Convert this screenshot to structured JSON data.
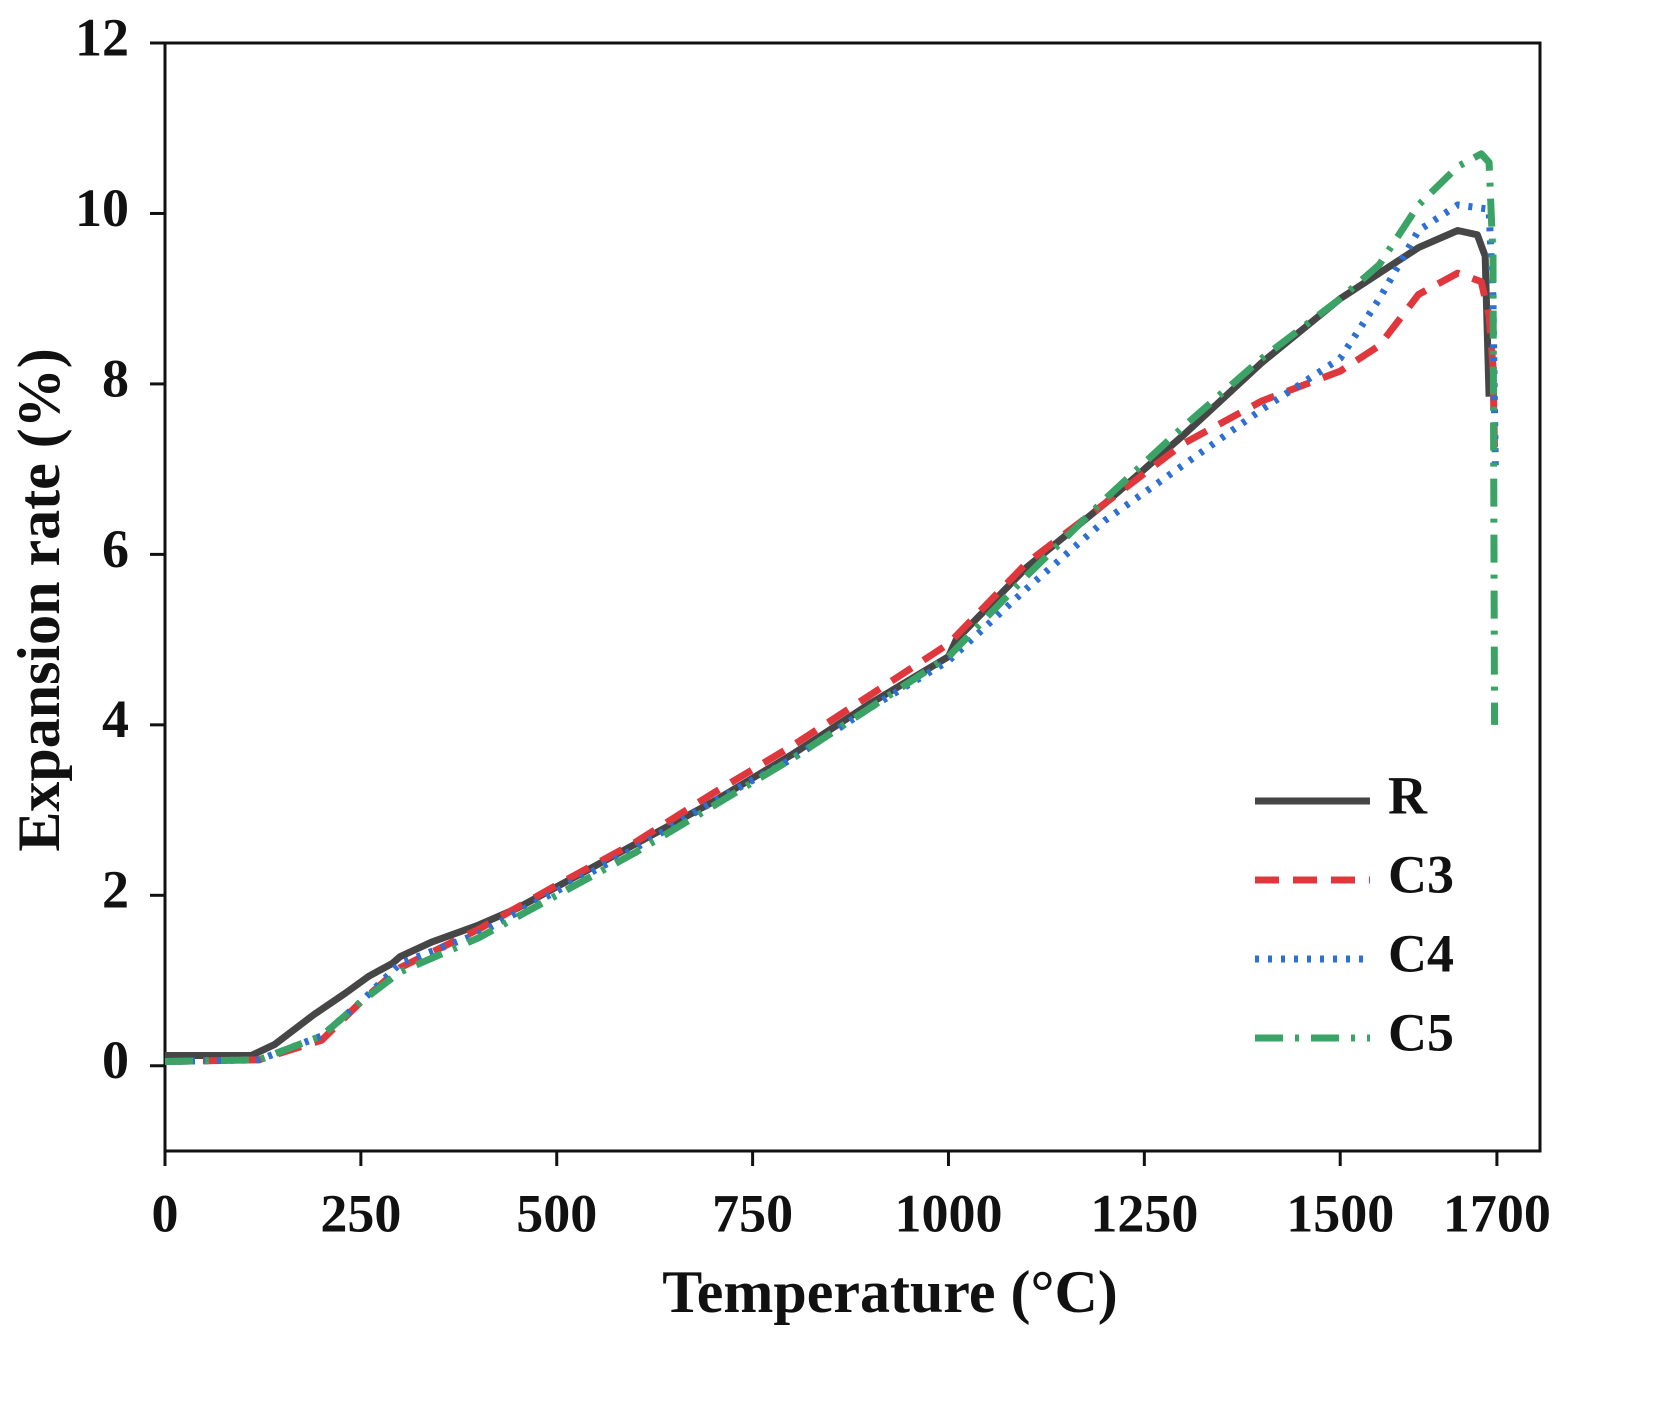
{
  "chart_data": {
    "type": "line",
    "xlabel": "Temperature (°C)",
    "ylabel": "Expansion rate (%)",
    "xlim": [
      0,
      1755
    ],
    "xticks": [
      0,
      250,
      500,
      750,
      1000,
      1250,
      1500,
      1700
    ],
    "ylim": [
      -1,
      12
    ],
    "yticks": [
      0,
      2,
      4,
      6,
      8,
      10,
      12
    ],
    "legend": "lower right",
    "series": [
      {
        "name": "R",
        "color": "#464646",
        "style": "solid",
        "x": [
          0,
          110,
          140,
          190,
          230,
          260,
          290,
          300,
          340,
          400,
          450,
          500,
          600,
          700,
          800,
          900,
          1000,
          1010,
          1100,
          1200,
          1300,
          1400,
          1500,
          1600,
          1650,
          1675,
          1685,
          1690
        ],
        "values": [
          0.12,
          0.12,
          0.25,
          0.6,
          0.85,
          1.05,
          1.2,
          1.28,
          1.45,
          1.65,
          1.85,
          2.1,
          2.6,
          3.1,
          3.65,
          4.25,
          4.8,
          5.0,
          5.85,
          6.6,
          7.4,
          8.25,
          9.0,
          9.6,
          9.8,
          9.75,
          9.5,
          7.85
        ]
      },
      {
        "name": "C3",
        "color": "#e0373d",
        "style": "dashed",
        "x": [
          0,
          120,
          200,
          250,
          300,
          400,
          500,
          600,
          700,
          800,
          900,
          1000,
          1100,
          1200,
          1300,
          1400,
          1500,
          1550,
          1600,
          1650,
          1680,
          1690,
          1695,
          1697
        ],
        "values": [
          0.05,
          0.07,
          0.3,
          0.75,
          1.15,
          1.6,
          2.12,
          2.62,
          3.2,
          3.75,
          4.35,
          4.95,
          5.9,
          6.6,
          7.3,
          7.8,
          8.15,
          8.45,
          9.05,
          9.3,
          9.2,
          8.8,
          8.2,
          7.2
        ]
      },
      {
        "name": "C4",
        "color": "#2e6fd3",
        "style": "dotted",
        "x": [
          0,
          120,
          200,
          250,
          300,
          400,
          500,
          600,
          700,
          800,
          900,
          1000,
          1100,
          1200,
          1300,
          1400,
          1500,
          1550,
          1600,
          1650,
          1690,
          1695,
          1698
        ],
        "values": [
          0.05,
          0.07,
          0.35,
          0.75,
          1.2,
          1.55,
          2.05,
          2.55,
          3.1,
          3.6,
          4.2,
          4.75,
          5.6,
          6.4,
          7.05,
          7.7,
          8.3,
          9.0,
          9.8,
          10.1,
          10.05,
          9.0,
          7.0
        ]
      },
      {
        "name": "C5",
        "color": "#3aa365",
        "style": "dashdot",
        "x": [
          0,
          120,
          200,
          250,
          300,
          400,
          500,
          600,
          700,
          800,
          900,
          1000,
          1100,
          1200,
          1300,
          1400,
          1500,
          1550,
          1600,
          1650,
          1680,
          1690,
          1695,
          1697
        ],
        "values": [
          0.05,
          0.07,
          0.35,
          0.75,
          1.1,
          1.5,
          2.0,
          2.5,
          3.05,
          3.6,
          4.2,
          4.8,
          5.75,
          6.65,
          7.5,
          8.3,
          9.0,
          9.4,
          10.1,
          10.55,
          10.7,
          10.6,
          9.5,
          4.0
        ]
      }
    ]
  }
}
